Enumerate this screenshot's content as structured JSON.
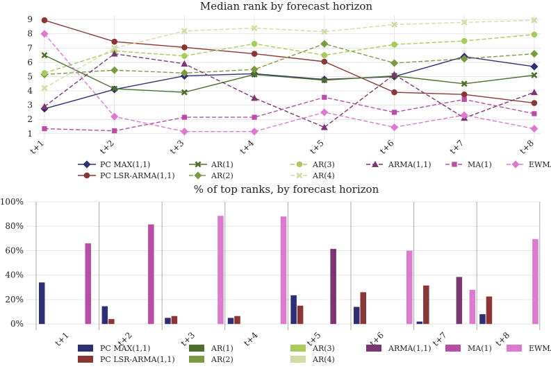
{
  "chart_data": [
    {
      "type": "line",
      "title": "Median rank by forecast horizon",
      "xlabel": "",
      "ylabel": "",
      "categories": [
        "t+1",
        "t+2",
        "t+3",
        "t+4",
        "t+5",
        "t+6",
        "t+7",
        "t+8"
      ],
      "ylim": [
        0.6,
        9.3
      ],
      "yticks": [
        "1",
        "2",
        "3",
        "4",
        "5",
        "6",
        "7",
        "8",
        "9"
      ],
      "grid": true,
      "legend_position": "bottom",
      "series": [
        {
          "name": "PC MAX(1,1)",
          "color": "#2e2e75",
          "marker": "diamond",
          "dash": "solid",
          "values": [
            2.75,
            4.1,
            5.05,
            5.2,
            4.8,
            5.0,
            6.4,
            5.7
          ]
        },
        {
          "name": "PC LSR-ARMA(1,1)",
          "color": "#8b3535",
          "marker": "circle",
          "dash": "solid",
          "values": [
            8.95,
            7.45,
            7.05,
            6.6,
            6.05,
            3.9,
            3.75,
            3.15
          ]
        },
        {
          "name": "AR(1)",
          "color": "#4e6e2c",
          "marker": "x",
          "dash": "solid",
          "values": [
            6.5,
            4.15,
            3.9,
            5.15,
            4.75,
            5.05,
            4.5,
            5.1
          ]
        },
        {
          "name": "AR(2)",
          "color": "#7c9a42",
          "marker": "diamond",
          "dash": "dashed",
          "values": [
            5.15,
            5.45,
            5.25,
            5.5,
            7.3,
            5.95,
            6.25,
            6.6
          ]
        },
        {
          "name": "AR(3)",
          "color": "#a9cb5c",
          "marker": "circle",
          "dash": "dashed",
          "values": [
            5.25,
            6.8,
            6.45,
            7.3,
            6.5,
            7.25,
            7.5,
            7.95
          ]
        },
        {
          "name": "AR(4)",
          "color": "#cfdda4",
          "marker": "x",
          "dash": "dashed",
          "values": [
            4.2,
            7.0,
            8.2,
            8.4,
            8.15,
            8.65,
            8.8,
            8.95
          ]
        },
        {
          "name": "ARMA(1,1)",
          "color": "#7a3572",
          "marker": "triangle",
          "dash": "dashed",
          "values": [
            2.9,
            6.6,
            5.9,
            3.5,
            1.45,
            5.15,
            2.1,
            3.9
          ]
        },
        {
          "name": "MA(1)",
          "color": "#b94ca4",
          "marker": "square",
          "dash": "dashed",
          "values": [
            1.35,
            1.2,
            2.15,
            2.15,
            3.55,
            2.5,
            3.4,
            2.4
          ]
        },
        {
          "name": "EWMA",
          "color": "#dc7ad0",
          "marker": "diamond",
          "dash": "dashed",
          "values": [
            8.0,
            2.2,
            1.15,
            1.15,
            2.5,
            1.45,
            2.3,
            1.35
          ]
        }
      ]
    },
    {
      "type": "bar",
      "title": "% of top ranks, by forecast horizon",
      "xlabel": "",
      "ylabel": "",
      "categories": [
        "t+1",
        "t+2",
        "t+3",
        "t+4",
        "t+5",
        "t+6",
        "t+7",
        "t+8"
      ],
      "ylim": [
        -5,
        100
      ],
      "yticks": [
        "0%",
        "20%",
        "40%",
        "60%",
        "80%",
        "100%"
      ],
      "ytick_values": [
        0,
        20,
        40,
        60,
        80,
        100
      ],
      "grid": true,
      "legend_position": "bottom",
      "series": [
        {
          "name": "PC MAX(1,1)",
          "color": "#2e2e75",
          "values": [
            34,
            14.5,
            5,
            5,
            23.5,
            14,
            2,
            8
          ]
        },
        {
          "name": "PC LSR-ARMA(1,1)",
          "color": "#8b3535",
          "values": [
            0,
            4,
            6.5,
            6.5,
            15,
            26,
            31.5,
            22.5
          ]
        },
        {
          "name": "AR(1)",
          "color": "#4e6e2c",
          "values": [
            0,
            0,
            0,
            0,
            0,
            0,
            0,
            0
          ]
        },
        {
          "name": "AR(2)",
          "color": "#7c9a42",
          "values": [
            0,
            0,
            0,
            0,
            0,
            0,
            0,
            0
          ]
        },
        {
          "name": "AR(3)",
          "color": "#a9cb5c",
          "values": [
            0,
            0,
            0,
            0,
            0,
            0,
            0,
            0
          ]
        },
        {
          "name": "AR(4)",
          "color": "#cfdda4",
          "values": [
            0,
            0,
            0,
            0,
            0,
            0,
            0,
            0
          ]
        },
        {
          "name": "ARMA(1,1)",
          "color": "#7a3572",
          "values": [
            0,
            0,
            0,
            0,
            61.5,
            0,
            38.5,
            0
          ]
        },
        {
          "name": "MA(1)",
          "color": "#b94ca4",
          "values": [
            66,
            81.5,
            0,
            0,
            0,
            0,
            0,
            0
          ]
        },
        {
          "name": "EWMA",
          "color": "#dc7ad0",
          "values": [
            0,
            0,
            88.5,
            88,
            0,
            60,
            28,
            69.5
          ]
        }
      ]
    }
  ]
}
